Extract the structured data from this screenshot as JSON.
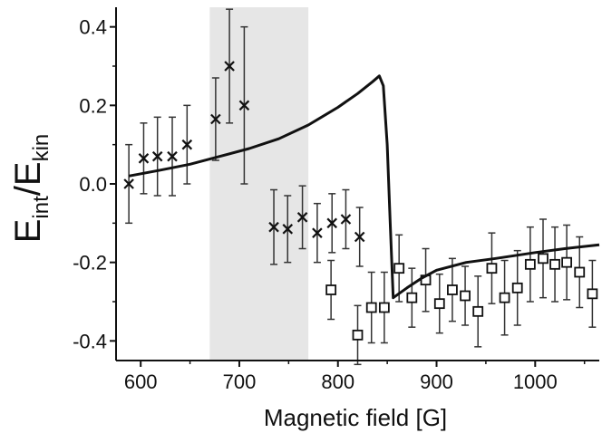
{
  "chart_data": {
    "type": "scatter",
    "title": "",
    "xlabel": "Magnetic field [G]",
    "ylabel": {
      "main": "E",
      "sub1": "int",
      "sep": "/E",
      "sub2": "kin"
    },
    "xlim": [
      575,
      1065
    ],
    "ylim": [
      -0.45,
      0.45
    ],
    "x_ticks": [
      600,
      700,
      800,
      900,
      1000
    ],
    "y_ticks": [
      0.4,
      0.2,
      0.0,
      -0.2,
      -0.4
    ],
    "y_tick_labels": [
      "0.4",
      "0.2",
      "0.0",
      "-0.2",
      "-0.4"
    ],
    "shaded_region": {
      "x_start": 670,
      "x_end": 770,
      "color": "#e6e6e6"
    },
    "grid": false,
    "legend": "none",
    "series": [
      {
        "marker": "x",
        "points": [
          {
            "x": 588,
            "y": 0.0,
            "err": 0.1
          },
          {
            "x": 603,
            "y": 0.065,
            "err": 0.09
          },
          {
            "x": 617,
            "y": 0.07,
            "err": 0.1
          },
          {
            "x": 632,
            "y": 0.07,
            "err": 0.1
          },
          {
            "x": 647,
            "y": 0.1,
            "err": 0.1
          },
          {
            "x": 676,
            "y": 0.165,
            "err": 0.105
          },
          {
            "x": 690,
            "y": 0.3,
            "err": 0.145
          },
          {
            "x": 705,
            "y": 0.2,
            "err": 0.2
          },
          {
            "x": 735,
            "y": -0.11,
            "err": 0.095
          },
          {
            "x": 749,
            "y": -0.115,
            "err": 0.085
          },
          {
            "x": 764,
            "y": -0.085,
            "err": 0.08
          },
          {
            "x": 779,
            "y": -0.125,
            "err": 0.075
          },
          {
            "x": 794,
            "y": -0.1,
            "err": 0.075
          },
          {
            "x": 808,
            "y": -0.09,
            "err": 0.075
          },
          {
            "x": 822,
            "y": -0.135,
            "err": 0.075
          }
        ]
      },
      {
        "marker": "square",
        "points": [
          {
            "x": 793,
            "y": -0.27,
            "err": 0.075
          },
          {
            "x": 820,
            "y": -0.385,
            "err": 0.075
          },
          {
            "x": 834,
            "y": -0.315,
            "err": 0.09
          },
          {
            "x": 847,
            "y": -0.315,
            "err": 0.09
          },
          {
            "x": 862,
            "y": -0.215,
            "err": 0.085
          },
          {
            "x": 875,
            "y": -0.29,
            "err": 0.075
          },
          {
            "x": 889,
            "y": -0.245,
            "err": 0.08
          },
          {
            "x": 903,
            "y": -0.305,
            "err": 0.075
          },
          {
            "x": 916,
            "y": -0.27,
            "err": 0.08
          },
          {
            "x": 929,
            "y": -0.285,
            "err": 0.075
          },
          {
            "x": 942,
            "y": -0.325,
            "err": 0.09
          },
          {
            "x": 956,
            "y": -0.215,
            "err": 0.09
          },
          {
            "x": 969,
            "y": -0.29,
            "err": 0.095
          },
          {
            "x": 982,
            "y": -0.265,
            "err": 0.095
          },
          {
            "x": 995,
            "y": -0.205,
            "err": 0.095
          },
          {
            "x": 1008,
            "y": -0.19,
            "err": 0.1
          },
          {
            "x": 1020,
            "y": -0.205,
            "err": 0.095
          },
          {
            "x": 1032,
            "y": -0.2,
            "err": 0.095
          },
          {
            "x": 1045,
            "y": -0.225,
            "err": 0.09
          },
          {
            "x": 1058,
            "y": -0.28,
            "err": 0.085
          }
        ]
      },
      {
        "marker": "line",
        "points": [
          {
            "x": 588,
            "y": 0.02
          },
          {
            "x": 620,
            "y": 0.035
          },
          {
            "x": 650,
            "y": 0.05
          },
          {
            "x": 680,
            "y": 0.07
          },
          {
            "x": 710,
            "y": 0.09
          },
          {
            "x": 740,
            "y": 0.115
          },
          {
            "x": 770,
            "y": 0.15
          },
          {
            "x": 800,
            "y": 0.195
          },
          {
            "x": 820,
            "y": 0.23
          },
          {
            "x": 835,
            "y": 0.26
          },
          {
            "x": 842,
            "y": 0.275
          },
          {
            "x": 846,
            "y": 0.25
          },
          {
            "x": 850,
            "y": 0.1
          },
          {
            "x": 853,
            "y": -0.1
          },
          {
            "x": 856,
            "y": -0.29
          },
          {
            "x": 870,
            "y": -0.265
          },
          {
            "x": 885,
            "y": -0.24
          },
          {
            "x": 900,
            "y": -0.22
          },
          {
            "x": 930,
            "y": -0.2
          },
          {
            "x": 960,
            "y": -0.19
          },
          {
            "x": 1000,
            "y": -0.175
          },
          {
            "x": 1030,
            "y": -0.165
          },
          {
            "x": 1065,
            "y": -0.155
          }
        ]
      }
    ]
  }
}
